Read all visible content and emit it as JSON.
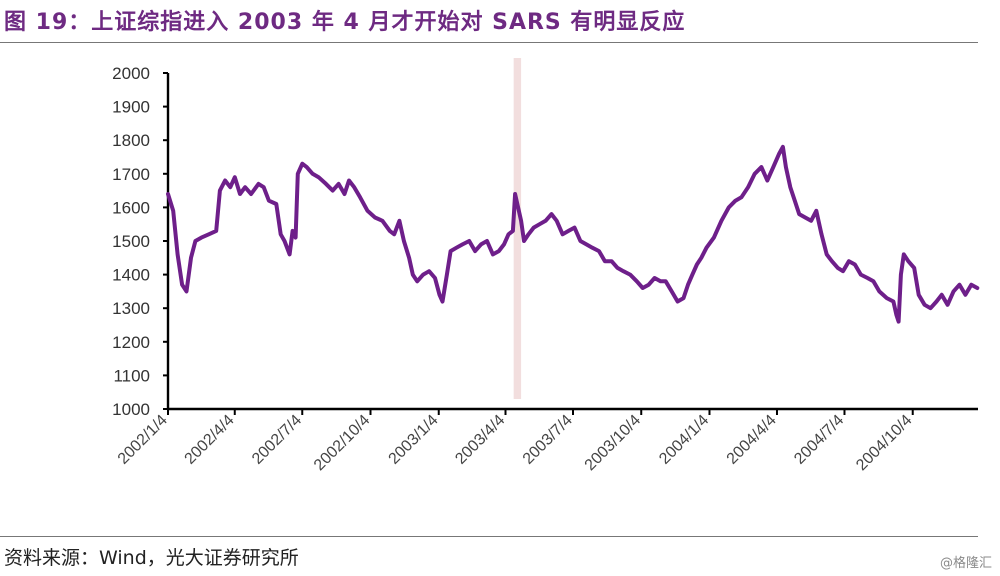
{
  "title": "图 19：上证综指进入 2003 年 4 月才开始对 SARS 有明显反应",
  "source": "资料来源：Wind，光大证券研究所",
  "watermark": "@格隆汇",
  "colors": {
    "title": "#6e2a82",
    "line": "#6e1f8a",
    "highlight": "#f2dede"
  },
  "chart_data": {
    "type": "line",
    "title": "",
    "xlabel": "",
    "ylabel": "",
    "ylim": [
      1000,
      2000
    ],
    "yticks": [
      1000,
      1100,
      1200,
      1300,
      1400,
      1500,
      1600,
      1700,
      1800,
      1900,
      2000
    ],
    "x_ticks": [
      "2002/1/4",
      "2002/4/4",
      "2002/7/4",
      "2002/10/4",
      "2003/1/4",
      "2003/4/4",
      "2003/7/4",
      "2003/10/4",
      "2004/1/4",
      "2004/4/4",
      "2004/7/4",
      "2004/10/4"
    ],
    "x_range": [
      "2002/1/4",
      "2004/12/31"
    ],
    "highlight_period": [
      "2003/4/15",
      "2003/4/25"
    ],
    "grid": false,
    "legend": "none",
    "series": [
      {
        "points": [
          [
            "2002/1/4",
            1640
          ],
          [
            "2002/1/11",
            1590
          ],
          [
            "2002/1/17",
            1460
          ],
          [
            "2002/1/23",
            1370
          ],
          [
            "2002/1/29",
            1350
          ],
          [
            "2002/2/4",
            1450
          ],
          [
            "2002/2/10",
            1500
          ],
          [
            "2002/2/18",
            1510
          ],
          [
            "2002/2/28",
            1520
          ],
          [
            "2002/3/10",
            1530
          ],
          [
            "2002/3/15",
            1650
          ],
          [
            "2002/3/22",
            1680
          ],
          [
            "2002/3/29",
            1660
          ],
          [
            "2002/4/4",
            1690
          ],
          [
            "2002/4/11",
            1640
          ],
          [
            "2002/4/18",
            1660
          ],
          [
            "2002/4/26",
            1640
          ],
          [
            "2002/5/6",
            1670
          ],
          [
            "2002/5/13",
            1660
          ],
          [
            "2002/5/20",
            1620
          ],
          [
            "2002/5/30",
            1610
          ],
          [
            "2002/6/5",
            1520
          ],
          [
            "2002/6/10",
            1500
          ],
          [
            "2002/6/17",
            1460
          ],
          [
            "2002/6/21",
            1530
          ],
          [
            "2002/6/25",
            1510
          ],
          [
            "2002/6/28",
            1700
          ],
          [
            "2002/7/4",
            1730
          ],
          [
            "2002/7/10",
            1720
          ],
          [
            "2002/7/18",
            1700
          ],
          [
            "2002/7/26",
            1690
          ],
          [
            "2002/8/5",
            1670
          ],
          [
            "2002/8/14",
            1650
          ],
          [
            "2002/8/22",
            1670
          ],
          [
            "2002/8/30",
            1640
          ],
          [
            "2002/9/5",
            1680
          ],
          [
            "2002/9/12",
            1660
          ],
          [
            "2002/9/20",
            1630
          ],
          [
            "2002/9/30",
            1590
          ],
          [
            "2002/10/10",
            1570
          ],
          [
            "2002/10/20",
            1560
          ],
          [
            "2002/10/30",
            1530
          ],
          [
            "2002/11/5",
            1520
          ],
          [
            "2002/11/12",
            1560
          ],
          [
            "2002/11/18",
            1500
          ],
          [
            "2002/11/25",
            1450
          ],
          [
            "2002/11/30",
            1400
          ],
          [
            "2002/12/6",
            1380
          ],
          [
            "2002/12/14",
            1400
          ],
          [
            "2002/12/22",
            1410
          ],
          [
            "2002/12/30",
            1390
          ],
          [
            "2003/1/5",
            1340
          ],
          [
            "2003/1/9",
            1320
          ],
          [
            "2003/1/15",
            1400
          ],
          [
            "2003/1/20",
            1470
          ],
          [
            "2003/1/28",
            1480
          ],
          [
            "2003/2/5",
            1490
          ],
          [
            "2003/2/14",
            1500
          ],
          [
            "2003/2/22",
            1470
          ],
          [
            "2003/3/2",
            1490
          ],
          [
            "2003/3/10",
            1500
          ],
          [
            "2003/3/18",
            1460
          ],
          [
            "2003/3/26",
            1470
          ],
          [
            "2003/4/2",
            1490
          ],
          [
            "2003/4/8",
            1520
          ],
          [
            "2003/4/14",
            1530
          ],
          [
            "2003/4/17",
            1640
          ],
          [
            "2003/4/21",
            1600
          ],
          [
            "2003/4/25",
            1560
          ],
          [
            "2003/4/29",
            1500
          ],
          [
            "2003/5/5",
            1520
          ],
          [
            "2003/5/12",
            1540
          ],
          [
            "2003/5/20",
            1550
          ],
          [
            "2003/5/28",
            1560
          ],
          [
            "2003/6/5",
            1580
          ],
          [
            "2003/6/12",
            1560
          ],
          [
            "2003/6/20",
            1520
          ],
          [
            "2003/6/28",
            1530
          ],
          [
            "2003/7/6",
            1540
          ],
          [
            "2003/7/14",
            1500
          ],
          [
            "2003/7/22",
            1490
          ],
          [
            "2003/7/30",
            1480
          ],
          [
            "2003/8/8",
            1470
          ],
          [
            "2003/8/16",
            1440
          ],
          [
            "2003/8/25",
            1440
          ],
          [
            "2003/9/2",
            1420
          ],
          [
            "2003/9/10",
            1410
          ],
          [
            "2003/9/19",
            1400
          ],
          [
            "2003/9/28",
            1380
          ],
          [
            "2003/10/6",
            1360
          ],
          [
            "2003/10/14",
            1370
          ],
          [
            "2003/10/22",
            1390
          ],
          [
            "2003/10/30",
            1380
          ],
          [
            "2003/11/6",
            1380
          ],
          [
            "2003/11/14",
            1350
          ],
          [
            "2003/11/22",
            1320
          ],
          [
            "2003/11/30",
            1330
          ],
          [
            "2003/12/6",
            1370
          ],
          [
            "2003/12/12",
            1400
          ],
          [
            "2003/12/18",
            1430
          ],
          [
            "2003/12/24",
            1450
          ],
          [
            "2003/12/31",
            1480
          ],
          [
            "2004/1/10",
            1510
          ],
          [
            "2004/1/20",
            1560
          ],
          [
            "2004/1/30",
            1600
          ],
          [
            "2004/2/8",
            1620
          ],
          [
            "2004/2/16",
            1630
          ],
          [
            "2004/2/25",
            1660
          ],
          [
            "2004/3/5",
            1700
          ],
          [
            "2004/3/14",
            1720
          ],
          [
            "2004/3/22",
            1680
          ],
          [
            "2004/3/30",
            1720
          ],
          [
            "2004/4/7",
            1760
          ],
          [
            "2004/4/12",
            1780
          ],
          [
            "2004/4/16",
            1720
          ],
          [
            "2004/4/22",
            1660
          ],
          [
            "2004/4/28",
            1620
          ],
          [
            "2004/5/4",
            1580
          ],
          [
            "2004/5/12",
            1570
          ],
          [
            "2004/5/20",
            1560
          ],
          [
            "2004/5/27",
            1590
          ],
          [
            "2004/6/3",
            1520
          ],
          [
            "2004/6/10",
            1460
          ],
          [
            "2004/6/17",
            1440
          ],
          [
            "2004/6/25",
            1420
          ],
          [
            "2004/7/2",
            1410
          ],
          [
            "2004/7/10",
            1440
          ],
          [
            "2004/7/18",
            1430
          ],
          [
            "2004/7/26",
            1400
          ],
          [
            "2004/8/4",
            1390
          ],
          [
            "2004/8/12",
            1380
          ],
          [
            "2004/8/20",
            1350
          ],
          [
            "2004/8/30",
            1330
          ],
          [
            "2004/9/8",
            1320
          ],
          [
            "2004/9/12",
            1280
          ],
          [
            "2004/9/15",
            1260
          ],
          [
            "2004/9/18",
            1400
          ],
          [
            "2004/9/22",
            1460
          ],
          [
            "2004/9/28",
            1440
          ],
          [
            "2004/10/6",
            1420
          ],
          [
            "2004/10/12",
            1340
          ],
          [
            "2004/10/20",
            1310
          ],
          [
            "2004/10/28",
            1300
          ],
          [
            "2004/11/5",
            1320
          ],
          [
            "2004/11/12",
            1340
          ],
          [
            "2004/11/20",
            1310
          ],
          [
            "2004/11/28",
            1350
          ],
          [
            "2004/12/6",
            1370
          ],
          [
            "2004/12/14",
            1340
          ],
          [
            "2004/12/22",
            1370
          ],
          [
            "2004/12/30",
            1360
          ]
        ]
      }
    ]
  }
}
